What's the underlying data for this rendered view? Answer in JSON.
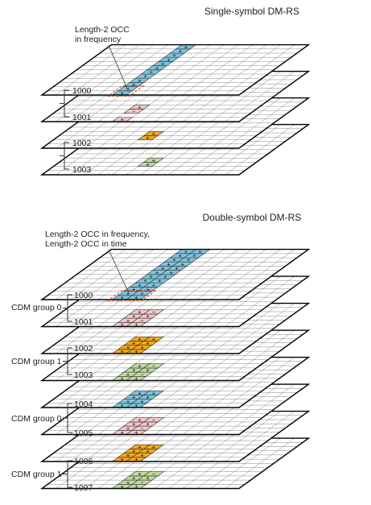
{
  "single": {
    "title": "Single-symbol DM-RS",
    "annotation": [
      "Length-2 OCC",
      "in frequency"
    ],
    "ports": [
      "1000",
      "1001",
      "1002",
      "1003"
    ]
  },
  "double": {
    "title": "Double-symbol DM-RS",
    "annotation": [
      "Length-2 OCC in frequency,",
      "Length-2 OCC in time"
    ],
    "ports": [
      "1000",
      "1001",
      "1002",
      "1003",
      "1004",
      "1005",
      "1006",
      "1007"
    ],
    "groups": [
      "CDM group 0",
      "CDM group 1",
      "CDM group 0",
      "CDM group 1"
    ]
  },
  "signs": {
    "plus": "+",
    "minus": "−"
  },
  "colors": {
    "grid_line": "#7a7a7a",
    "layer_edge": "#000000",
    "blue": "#7fc4de",
    "pink": "#f5c8cc",
    "orange": "#f2a81d",
    "green": "#c2dba0",
    "occ_box": "#e8491d"
  }
}
